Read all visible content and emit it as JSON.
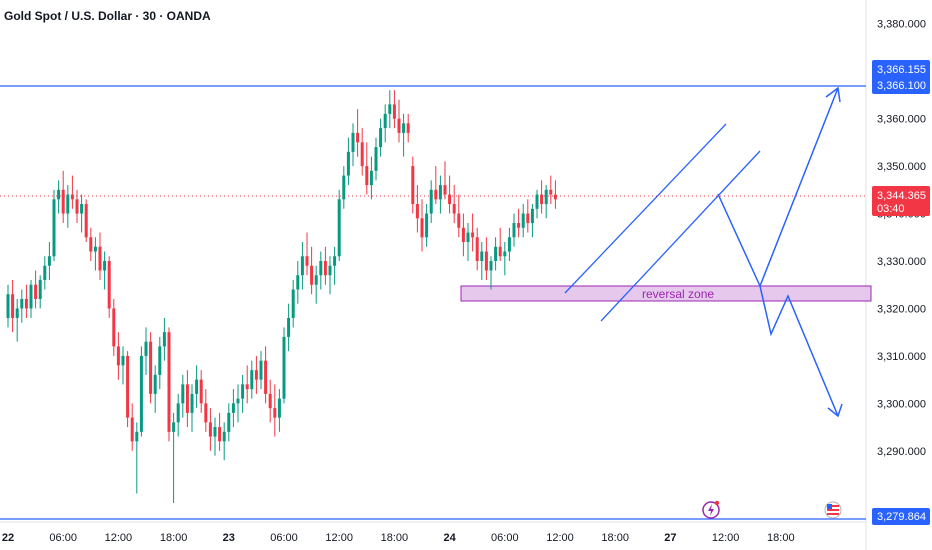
{
  "header": {
    "title": "Gold Spot / U.S. Dollar · 30 · OANDA"
  },
  "colors": {
    "up": "#089981",
    "down": "#f23645",
    "line": "#2962ff",
    "arrow": "#2962ff",
    "zone_fill": "#e1bee7",
    "zone_border": "#9c27b0",
    "price_badge": "#f23645",
    "level_badge": "#2962ff"
  },
  "badges": {
    "level_top_a": "3,366.155",
    "level_top_b": "3,366.100",
    "current_price": "3,344.365",
    "countdown": "03:40",
    "level_bottom": "3,279.864"
  },
  "annotations": {
    "zone_label": "reversal zone"
  },
  "icons": {
    "events": [
      "lightning-event-icon",
      "us-flag-event-icon"
    ]
  },
  "chart_data": {
    "type": "candlestick",
    "symbol": "XAUUSD",
    "interval": "30",
    "ylim": [
      3275,
      3385
    ],
    "y_ticks": [
      {
        "value": 3380,
        "label": "3,380.000"
      },
      {
        "value": 3370,
        "label": "3,370.000"
      },
      {
        "value": 3360,
        "label": "3,360.000"
      },
      {
        "value": 3350,
        "label": "3,350.000"
      },
      {
        "value": 3340,
        "label": "3,340.000"
      },
      {
        "value": 3330,
        "label": "3,330.000"
      },
      {
        "value": 3320,
        "label": "3,320.000"
      },
      {
        "value": 3310,
        "label": "3,310.000"
      },
      {
        "value": 3300,
        "label": "3,300.000"
      },
      {
        "value": 3290,
        "label": "3,290.000"
      }
    ],
    "x_ticks": [
      {
        "bar": 0,
        "label": "22",
        "bold": true
      },
      {
        "bar": 12,
        "label": "06:00",
        "bold": false
      },
      {
        "bar": 24,
        "label": "12:00",
        "bold": false
      },
      {
        "bar": 36,
        "label": "18:00",
        "bold": false
      },
      {
        "bar": 48,
        "label": "23",
        "bold": true
      },
      {
        "bar": 60,
        "label": "06:00",
        "bold": false
      },
      {
        "bar": 72,
        "label": "12:00",
        "bold": false
      },
      {
        "bar": 84,
        "label": "18:00",
        "bold": false
      },
      {
        "bar": 96,
        "label": "24",
        "bold": true
      },
      {
        "bar": 108,
        "label": "06:00",
        "bold": false
      },
      {
        "bar": 120,
        "label": "12:00",
        "bold": false
      },
      {
        "bar": 132,
        "label": "18:00",
        "bold": false
      },
      {
        "bar": 144,
        "label": "27",
        "bold": true
      },
      {
        "bar": 156,
        "label": "12:00",
        "bold": false
      },
      {
        "bar": 168,
        "label": "18:00",
        "bold": false
      }
    ],
    "ohlc": [
      [
        3318,
        3325,
        3316,
        3323
      ],
      [
        3323,
        3326,
        3315,
        3318
      ],
      [
        3318,
        3322,
        3313,
        3320
      ],
      [
        3320,
        3324,
        3317,
        3322
      ],
      [
        3322,
        3325,
        3318,
        3320
      ],
      [
        3320,
        3326,
        3318,
        3325
      ],
      [
        3325,
        3328,
        3320,
        3322
      ],
      [
        3322,
        3327,
        3320,
        3326
      ],
      [
        3326,
        3331,
        3324,
        3329
      ],
      [
        3329,
        3334,
        3326,
        3331
      ],
      [
        3331,
        3345,
        3330,
        3343
      ],
      [
        3343,
        3347,
        3340,
        3345
      ],
      [
        3345,
        3349,
        3338,
        3340
      ],
      [
        3340,
        3346,
        3337,
        3344
      ],
      [
        3344,
        3348,
        3341,
        3343
      ],
      [
        3343,
        3345,
        3338,
        3340
      ],
      [
        3340,
        3344,
        3336,
        3342
      ],
      [
        3342,
        3343,
        3334,
        3335
      ],
      [
        3335,
        3337,
        3330,
        3332
      ],
      [
        3332,
        3335,
        3328,
        3333
      ],
      [
        3333,
        3336,
        3326,
        3328
      ],
      [
        3328,
        3332,
        3324,
        3330
      ],
      [
        3330,
        3331,
        3318,
        3320
      ],
      [
        3320,
        3322,
        3310,
        3312
      ],
      [
        3312,
        3315,
        3305,
        3308
      ],
      [
        3308,
        3312,
        3304,
        3310
      ],
      [
        3310,
        3311,
        3295,
        3297
      ],
      [
        3297,
        3300,
        3290,
        3292
      ],
      [
        3292,
        3296,
        3281,
        3294
      ],
      [
        3294,
        3312,
        3293,
        3310
      ],
      [
        3310,
        3316,
        3306,
        3313
      ],
      [
        3313,
        3315,
        3300,
        3302
      ],
      [
        3302,
        3308,
        3298,
        3306
      ],
      [
        3306,
        3314,
        3303,
        3312
      ],
      [
        3312,
        3318,
        3309,
        3315
      ],
      [
        3315,
        3316,
        3292,
        3294
      ],
      [
        3294,
        3298,
        3279,
        3296
      ],
      [
        3296,
        3302,
        3293,
        3300
      ],
      [
        3300,
        3306,
        3297,
        3304
      ],
      [
        3304,
        3307,
        3295,
        3298
      ],
      [
        3298,
        3304,
        3294,
        3302
      ],
      [
        3302,
        3308,
        3299,
        3305
      ],
      [
        3305,
        3307,
        3298,
        3300
      ],
      [
        3300,
        3303,
        3294,
        3296
      ],
      [
        3296,
        3299,
        3290,
        3293
      ],
      [
        3293,
        3297,
        3289,
        3295
      ],
      [
        3295,
        3298,
        3290,
        3292
      ],
      [
        3292,
        3296,
        3288,
        3294
      ],
      [
        3294,
        3300,
        3292,
        3298
      ],
      [
        3298,
        3303,
        3295,
        3300
      ],
      [
        3300,
        3304,
        3296,
        3301
      ],
      [
        3301,
        3306,
        3298,
        3304
      ],
      [
        3304,
        3308,
        3300,
        3303
      ],
      [
        3303,
        3309,
        3301,
        3307
      ],
      [
        3307,
        3310,
        3302,
        3305
      ],
      [
        3305,
        3311,
        3303,
        3309
      ],
      [
        3309,
        3312,
        3300,
        3302
      ],
      [
        3302,
        3305,
        3296,
        3299
      ],
      [
        3299,
        3304,
        3293,
        3297
      ],
      [
        3297,
        3303,
        3294,
        3301
      ],
      [
        3301,
        3316,
        3300,
        3314
      ],
      [
        3314,
        3321,
        3311,
        3318
      ],
      [
        3318,
        3326,
        3316,
        3324
      ],
      [
        3324,
        3330,
        3321,
        3327
      ],
      [
        3327,
        3334,
        3324,
        3331
      ],
      [
        3331,
        3336,
        3327,
        3329
      ],
      [
        3329,
        3333,
        3323,
        3325
      ],
      [
        3325,
        3329,
        3321,
        3327
      ],
      [
        3327,
        3332,
        3324,
        3330
      ],
      [
        3330,
        3333,
        3325,
        3327
      ],
      [
        3327,
        3331,
        3323,
        3329
      ],
      [
        3329,
        3333,
        3325,
        3331
      ],
      [
        3331,
        3345,
        3330,
        3343
      ],
      [
        3343,
        3350,
        3341,
        3348
      ],
      [
        3348,
        3356,
        3346,
        3353
      ],
      [
        3353,
        3359,
        3350,
        3357
      ],
      [
        3357,
        3362,
        3352,
        3355
      ],
      [
        3355,
        3358,
        3348,
        3350
      ],
      [
        3350,
        3355,
        3344,
        3346
      ],
      [
        3346,
        3352,
        3343,
        3349
      ],
      [
        3349,
        3356,
        3347,
        3354
      ],
      [
        3354,
        3360,
        3352,
        3358
      ],
      [
        3358,
        3363,
        3355,
        3361
      ],
      [
        3361,
        3366,
        3358,
        3363
      ],
      [
        3363,
        3366,
        3358,
        3360
      ],
      [
        3360,
        3364,
        3355,
        3357
      ],
      [
        3357,
        3361,
        3352,
        3359
      ],
      [
        3359,
        3361,
        3355,
        3357
      ],
      [
        3350,
        3352,
        3340,
        3342
      ],
      [
        3342,
        3346,
        3336,
        3339
      ],
      [
        3339,
        3343,
        3332,
        3335
      ],
      [
        3335,
        3342,
        3333,
        3340
      ],
      [
        3340,
        3347,
        3338,
        3345
      ],
      [
        3345,
        3350,
        3342,
        3343
      ],
      [
        3343,
        3348,
        3340,
        3346
      ],
      [
        3346,
        3351,
        3343,
        3344
      ],
      [
        3344,
        3348,
        3340,
        3342
      ],
      [
        3342,
        3346,
        3338,
        3340
      ],
      [
        3340,
        3344,
        3335,
        3337
      ],
      [
        3337,
        3340,
        3331,
        3334
      ],
      [
        3334,
        3338,
        3330,
        3336
      ],
      [
        3336,
        3340,
        3332,
        3335
      ],
      [
        3335,
        3337,
        3328,
        3330
      ],
      [
        3330,
        3334,
        3326,
        3332
      ],
      [
        3332,
        3335,
        3326,
        3328
      ],
      [
        3328,
        3331,
        3324,
        3330
      ],
      [
        3330,
        3335,
        3328,
        3333
      ],
      [
        3333,
        3337,
        3330,
        3331
      ],
      [
        3331,
        3334,
        3327,
        3332
      ],
      [
        3332,
        3337,
        3330,
        3335
      ],
      [
        3335,
        3340,
        3333,
        3338
      ],
      [
        3338,
        3341,
        3335,
        3337
      ],
      [
        3337,
        3342,
        3335,
        3340
      ],
      [
        3340,
        3343,
        3336,
        3338
      ],
      [
        3338,
        3342,
        3335,
        3341
      ],
      [
        3341,
        3345,
        3339,
        3344
      ],
      [
        3344,
        3347,
        3340,
        3342
      ],
      [
        3342,
        3346,
        3339,
        3345
      ],
      [
        3345,
        3348,
        3342,
        3344
      ],
      [
        3344,
        3347,
        3341,
        3343
      ]
    ]
  }
}
